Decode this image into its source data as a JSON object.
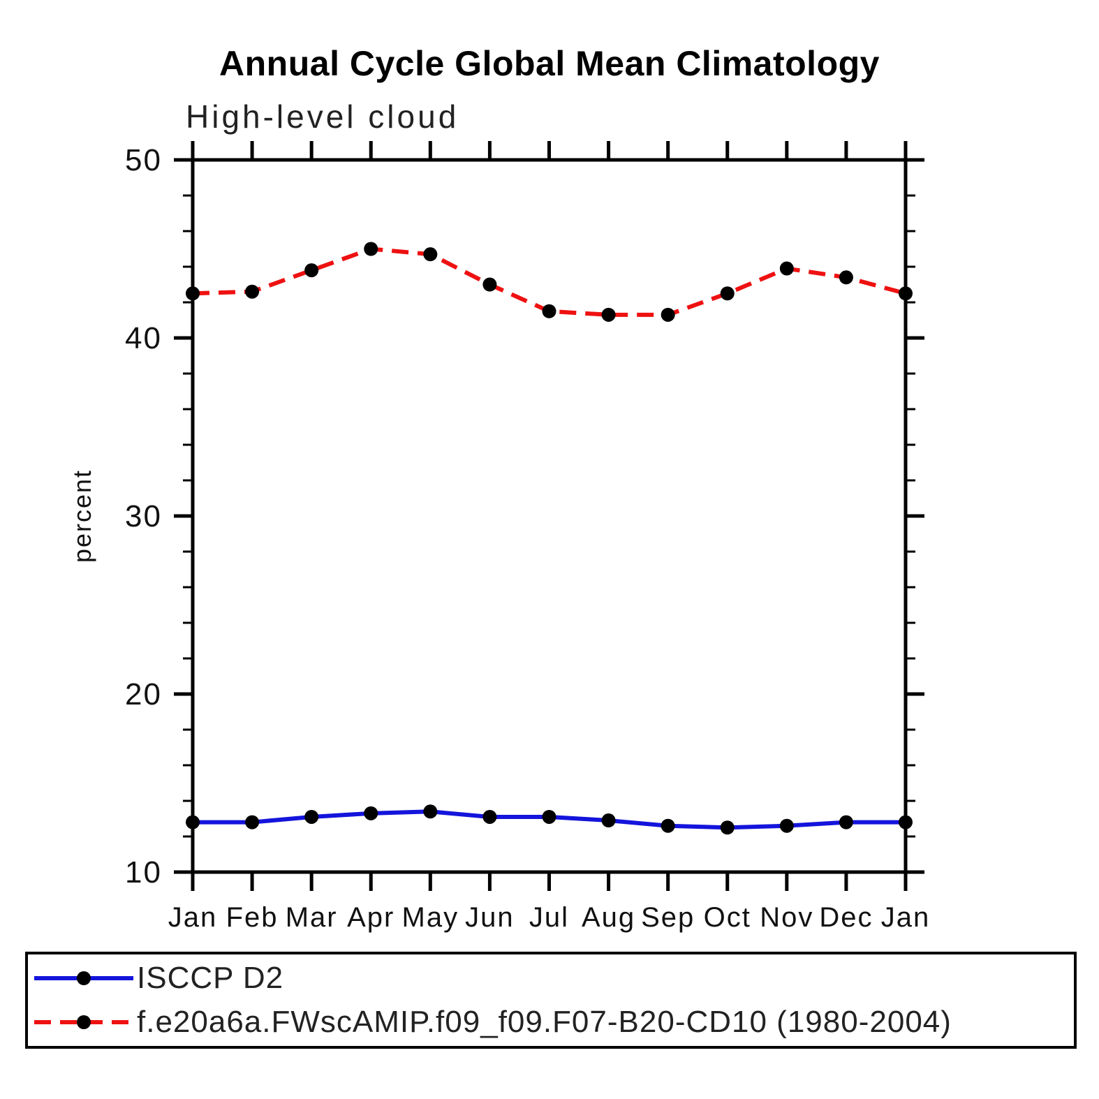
{
  "chart_data": {
    "type": "line",
    "title": "Annual Cycle Global Mean Climatology",
    "subtitle": "High-level cloud",
    "ylabel": "percent",
    "categories": [
      "Jan",
      "Feb",
      "Mar",
      "Apr",
      "May",
      "Jun",
      "Jul",
      "Aug",
      "Sep",
      "Oct",
      "Nov",
      "Dec",
      "Jan"
    ],
    "series": [
      {
        "name": "ISCCP D2",
        "style": "solid",
        "color": "#1414dc",
        "marker": "circle",
        "marker_color": "#000000",
        "values": [
          12.8,
          12.8,
          13.1,
          13.3,
          13.4,
          13.1,
          13.1,
          12.9,
          12.6,
          12.5,
          12.6,
          12.8,
          12.8
        ]
      },
      {
        "name": "f.e20a6a.FWscAMIP.f09_f09.F07-B20-CD10 (1980-2004)",
        "style": "dashed",
        "color": "#ee1111",
        "marker": "circle",
        "marker_color": "#000000",
        "values": [
          42.5,
          42.6,
          43.8,
          45.0,
          44.7,
          43.0,
          41.5,
          41.3,
          41.3,
          42.5,
          43.9,
          43.4,
          42.5
        ]
      }
    ],
    "ylim": [
      10,
      50
    ],
    "yticks_major": [
      10,
      20,
      30,
      40,
      50
    ],
    "ytick_minor_step": 2,
    "grid": false,
    "axis_color": "#000000",
    "text_color": "#111111",
    "legend_position": "bottom"
  }
}
